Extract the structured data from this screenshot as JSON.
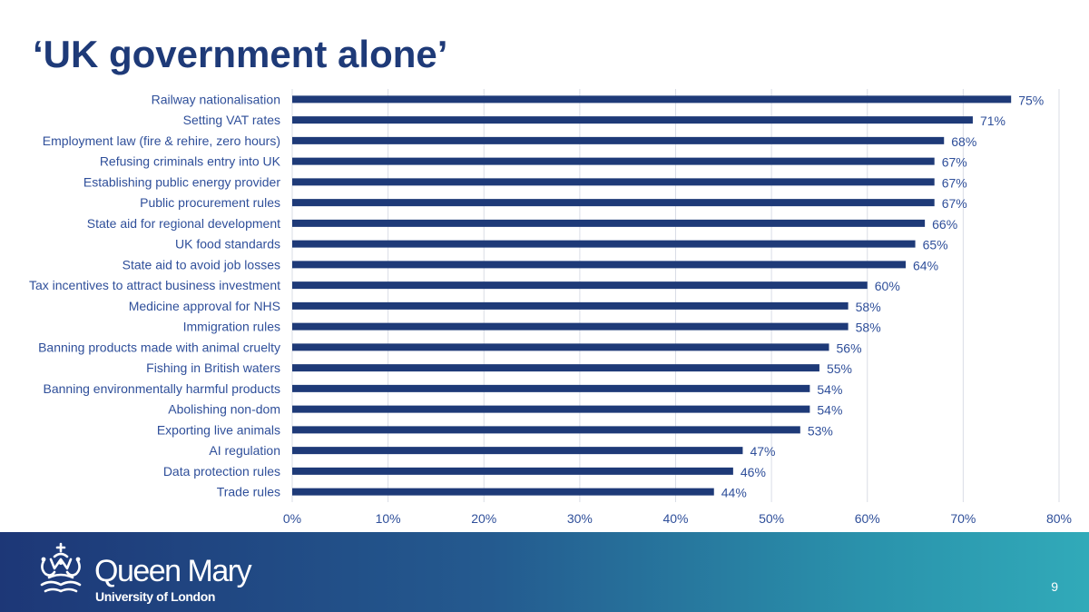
{
  "slide": {
    "title": "‘UK government alone’",
    "page_number": "9"
  },
  "branding": {
    "name": "Queen Mary",
    "subtitle": "University of London"
  },
  "colors": {
    "bar": "#1e3a78",
    "title": "#1e3a78",
    "label": "#2f4f9a",
    "grid": "#d9dde6"
  },
  "chart_data": {
    "type": "bar",
    "orientation": "horizontal",
    "categories": [
      "Railway nationalisation",
      "Setting VAT rates",
      "Employment law (fire & rehire, zero hours)",
      "Refusing criminals entry into UK",
      "Establishing public energy provider",
      "Public procurement rules",
      "State aid for regional development",
      "UK food standards",
      "State aid to avoid job losses",
      "Tax incentives to attract business investment",
      "Medicine approval for NHS",
      "Immigration rules",
      "Banning products made with animal cruelty",
      "Fishing in British waters",
      "Banning environmentally harmful products",
      "Abolishing non-dom",
      "Exporting live animals",
      "AI regulation",
      "Data protection rules",
      "Trade rules"
    ],
    "values": [
      75,
      71,
      68,
      67,
      67,
      67,
      66,
      65,
      64,
      60,
      58,
      58,
      56,
      55,
      54,
      54,
      53,
      47,
      46,
      44
    ],
    "data_labels": [
      "75%",
      "71%",
      "68%",
      "67%",
      "67%",
      "67%",
      "66%",
      "65%",
      "64%",
      "60%",
      "58%",
      "58%",
      "56%",
      "55%",
      "54%",
      "54%",
      "53%",
      "47%",
      "46%",
      "44%"
    ],
    "x_ticks": [
      0,
      10,
      20,
      30,
      40,
      50,
      60,
      70,
      80
    ],
    "x_tick_labels": [
      "0%",
      "10%",
      "20%",
      "30%",
      "40%",
      "50%",
      "60%",
      "70%",
      "80%"
    ],
    "xlim": [
      0,
      80
    ],
    "grid": true,
    "legend": false
  }
}
